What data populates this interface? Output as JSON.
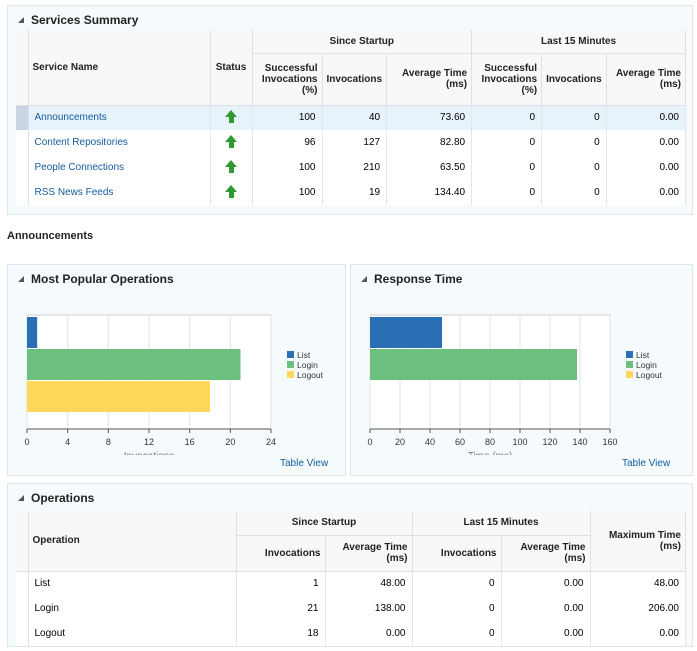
{
  "services_summary": {
    "title": "Services Summary",
    "headers": {
      "service_name": "Service Name",
      "status": "Status",
      "since_startup": "Since Startup",
      "last_15": "Last 15 Minutes",
      "successful": "Successful Invocations (%)",
      "invocations": "Invocations",
      "average_time": "Average Time (ms)"
    },
    "rows": [
      {
        "name": "Announcements",
        "status": "up-arrow-icon",
        "succ": "100",
        "inv": "40",
        "avg": "73.60",
        "succ15": "0",
        "inv15": "0",
        "avg15": "0.00"
      },
      {
        "name": "Content Repositories",
        "status": "up-arrow-icon",
        "succ": "96",
        "inv": "127",
        "avg": "82.80",
        "succ15": "0",
        "inv15": "0",
        "avg15": "0.00"
      },
      {
        "name": "People Connections",
        "status": "up-arrow-icon",
        "succ": "100",
        "inv": "210",
        "avg": "63.50",
        "succ15": "0",
        "inv15": "0",
        "avg15": "0.00"
      },
      {
        "name": "RSS News Feeds",
        "status": "up-arrow-icon",
        "succ": "100",
        "inv": "19",
        "avg": "134.40",
        "succ15": "0",
        "inv15": "0",
        "avg15": "0.00"
      }
    ]
  },
  "section_label": "Announcements",
  "popular_ops": {
    "title": "Most Popular Operations",
    "table_view": "Table View"
  },
  "response_time": {
    "title": "Response Time",
    "table_view": "Table View"
  },
  "chart_data": [
    {
      "type": "bar",
      "orientation": "horizontal",
      "categories": [
        "List",
        "Login",
        "Logout"
      ],
      "values": [
        1,
        21,
        18
      ],
      "xlabel": "Invocations",
      "xlim": [
        0,
        24
      ],
      "xticks": [
        0,
        4,
        8,
        12,
        16,
        20,
        24
      ],
      "legend": [
        "List",
        "Login",
        "Logout"
      ],
      "legend_position": "right",
      "grid": true,
      "colors": [
        "#2a6fb5",
        "#6cc07e",
        "#ffd75a"
      ]
    },
    {
      "type": "bar",
      "orientation": "horizontal",
      "categories": [
        "List",
        "Login",
        "Logout"
      ],
      "values": [
        48,
        138,
        0
      ],
      "xlabel": "Time (ms)",
      "xlim": [
        0,
        160
      ],
      "xticks": [
        0,
        20,
        40,
        60,
        80,
        100,
        120,
        140,
        160
      ],
      "legend": [
        "List",
        "Login",
        "Logout"
      ],
      "legend_position": "right",
      "grid": true,
      "colors": [
        "#2a6fb5",
        "#6cc07e",
        "#ffd75a"
      ]
    }
  ],
  "operations": {
    "title": "Operations",
    "headers": {
      "operation": "Operation",
      "since_startup": "Since Startup",
      "last_15": "Last 15 Minutes",
      "invocations": "Invocations",
      "average_time": "Average Time (ms)",
      "max_time": "Maximum Time (ms)"
    },
    "rows": [
      {
        "name": "List",
        "inv": "1",
        "avg": "48.00",
        "inv15": "0",
        "avg15": "0.00",
        "max": "48.00"
      },
      {
        "name": "Login",
        "inv": "21",
        "avg": "138.00",
        "inv15": "0",
        "avg15": "0.00",
        "max": "206.00"
      },
      {
        "name": "Logout",
        "inv": "18",
        "avg": "0.00",
        "inv15": "0",
        "avg15": "0.00",
        "max": "0.00"
      }
    ]
  }
}
